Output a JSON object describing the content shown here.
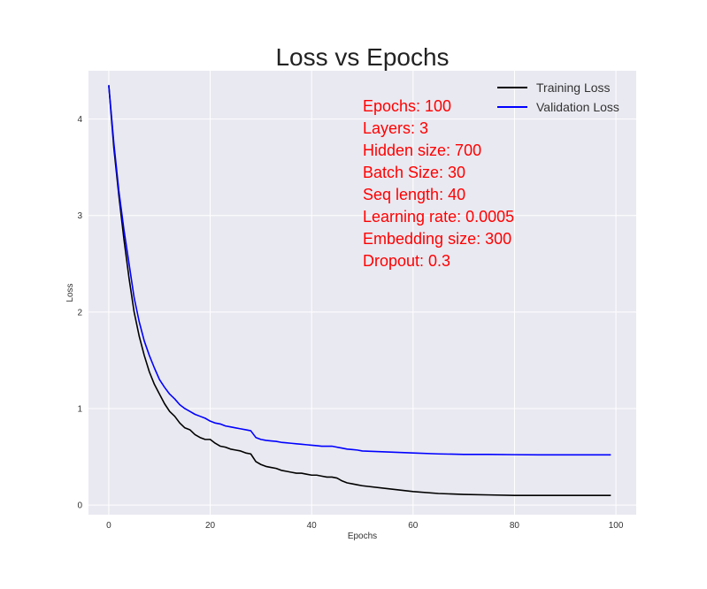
{
  "chart_data": {
    "type": "line",
    "title": "Loss vs Epochs",
    "xlabel": "Epochs",
    "ylabel": "Loss",
    "xlim": [
      -4,
      104
    ],
    "ylim": [
      -0.1,
      4.5
    ],
    "xticks": [
      0,
      20,
      40,
      60,
      80,
      100
    ],
    "yticks": [
      0,
      1,
      2,
      3,
      4
    ],
    "grid": true,
    "legend_position": "top-right",
    "background": "#e9e9f1",
    "annotation_color": "#ff0000",
    "annotations": [
      "Epochs: 100",
      "Layers: 3",
      "Hidden size: 700",
      "Batch Size: 30",
      "Seq length: 40",
      "Learning rate: 0.0005",
      "Embedding size: 300",
      "Dropout: 0.3"
    ],
    "series": [
      {
        "name": "Training Loss",
        "color": "#000000",
        "x": [
          0,
          1,
          2,
          3,
          4,
          5,
          6,
          7,
          8,
          9,
          10,
          11,
          12,
          13,
          14,
          15,
          16,
          17,
          18,
          19,
          20,
          21,
          22,
          23,
          24,
          25,
          26,
          27,
          28,
          29,
          30,
          31,
          32,
          33,
          34,
          35,
          36,
          37,
          38,
          39,
          40,
          41,
          42,
          43,
          44,
          45,
          46,
          47,
          48,
          49,
          50,
          55,
          60,
          65,
          70,
          75,
          80,
          85,
          90,
          95,
          99
        ],
        "values": [
          4.35,
          3.7,
          3.2,
          2.75,
          2.35,
          2.0,
          1.75,
          1.55,
          1.38,
          1.25,
          1.15,
          1.05,
          0.97,
          0.92,
          0.85,
          0.8,
          0.78,
          0.73,
          0.7,
          0.68,
          0.68,
          0.64,
          0.61,
          0.6,
          0.58,
          0.57,
          0.56,
          0.54,
          0.53,
          0.45,
          0.42,
          0.4,
          0.39,
          0.38,
          0.36,
          0.35,
          0.34,
          0.33,
          0.33,
          0.32,
          0.31,
          0.31,
          0.3,
          0.29,
          0.29,
          0.28,
          0.25,
          0.23,
          0.22,
          0.21,
          0.2,
          0.17,
          0.14,
          0.12,
          0.11,
          0.105,
          0.1,
          0.1,
          0.1,
          0.1,
          0.1
        ]
      },
      {
        "name": "Validation Loss",
        "color": "#0000ff",
        "x": [
          0,
          1,
          2,
          3,
          4,
          5,
          6,
          7,
          8,
          9,
          10,
          11,
          12,
          13,
          14,
          15,
          16,
          17,
          18,
          19,
          20,
          21,
          22,
          23,
          24,
          25,
          26,
          27,
          28,
          29,
          30,
          31,
          32,
          33,
          34,
          35,
          36,
          37,
          38,
          39,
          40,
          41,
          42,
          43,
          44,
          45,
          46,
          47,
          48,
          49,
          50,
          55,
          60,
          65,
          70,
          75,
          80,
          85,
          90,
          95,
          99
        ],
        "values": [
          4.35,
          3.75,
          3.25,
          2.85,
          2.5,
          2.15,
          1.9,
          1.7,
          1.55,
          1.42,
          1.3,
          1.22,
          1.15,
          1.1,
          1.04,
          1.0,
          0.97,
          0.94,
          0.92,
          0.9,
          0.87,
          0.85,
          0.84,
          0.82,
          0.81,
          0.8,
          0.79,
          0.78,
          0.77,
          0.7,
          0.68,
          0.67,
          0.665,
          0.66,
          0.65,
          0.645,
          0.64,
          0.635,
          0.63,
          0.625,
          0.62,
          0.615,
          0.61,
          0.61,
          0.61,
          0.6,
          0.59,
          0.58,
          0.575,
          0.57,
          0.56,
          0.55,
          0.54,
          0.53,
          0.525,
          0.525,
          0.522,
          0.52,
          0.52,
          0.52,
          0.52
        ]
      }
    ]
  }
}
